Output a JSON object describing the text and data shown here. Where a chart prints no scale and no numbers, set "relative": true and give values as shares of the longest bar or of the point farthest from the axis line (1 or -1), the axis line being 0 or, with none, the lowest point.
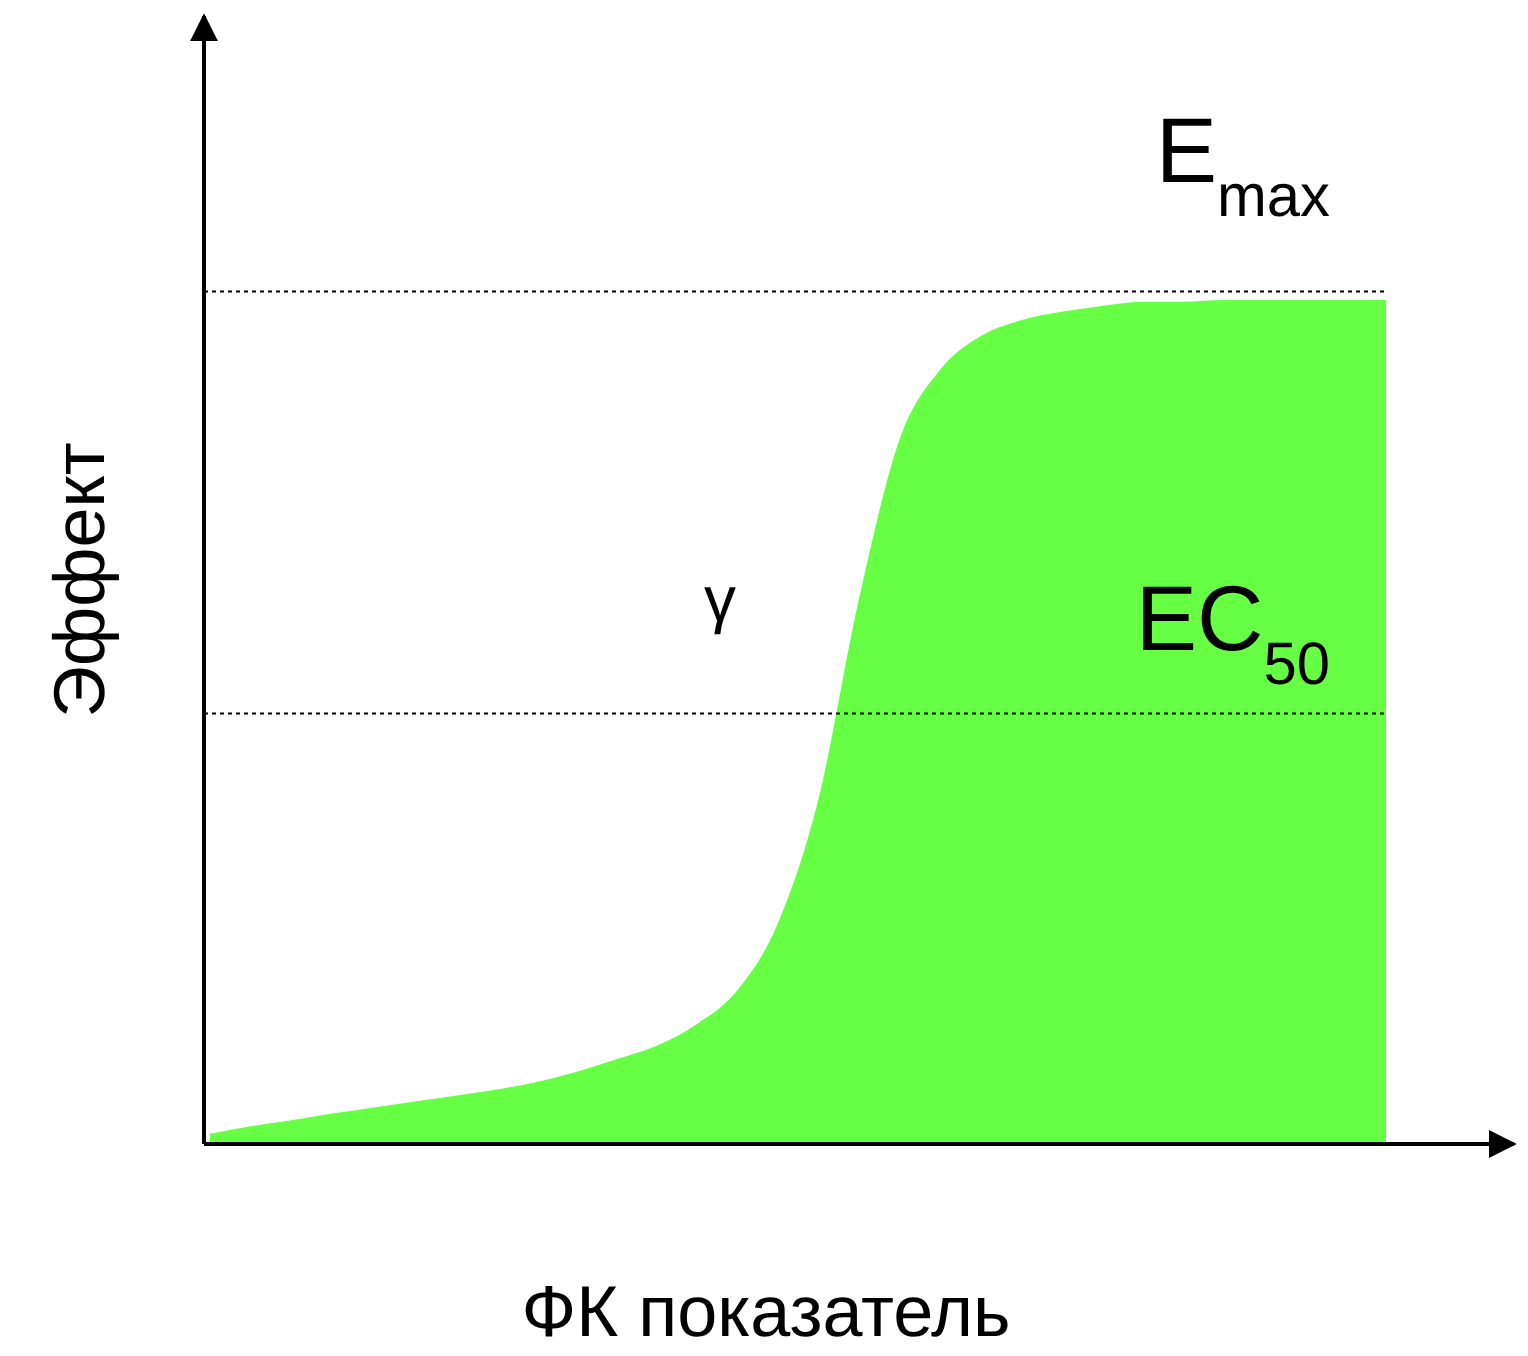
{
  "chart_data": {
    "type": "area",
    "relative": true,
    "xlabel": "ФК показатель",
    "ylabel": "Эффект",
    "categories": [
      null,
      null,
      null,
      null,
      null,
      null,
      null,
      null,
      null,
      null,
      null,
      null,
      null,
      null,
      null,
      null,
      null,
      null,
      null,
      null,
      null,
      null,
      null,
      null,
      null,
      null,
      null,
      null,
      null,
      null
    ],
    "series": [
      {
        "color": "#66ff44",
        "values": [
          0.012,
          0.021,
          0.028,
          0.036,
          0.043,
          0.05,
          0.057,
          0.064,
          0.073,
          0.085,
          0.1,
          0.116,
          0.142,
          0.182,
          0.261,
          0.408,
          0.645,
          0.834,
          0.917,
          0.957,
          0.976,
          0.986,
          0.993,
          0.998,
          0.998,
          1,
          1,
          1,
          1,
          1
        ]
      }
    ],
    "ref_lines": [
      {
        "axis": "y",
        "value": 1.01,
        "label": "E$_{max}$",
        "line_style": "dotted",
        "color": "#000000"
      },
      {
        "axis": "y",
        "value": 0.51,
        "label": "EC$_{50}$",
        "line_style": "dotted",
        "color": "#000000"
      }
    ],
    "annotations": [
      "γ"
    ]
  }
}
